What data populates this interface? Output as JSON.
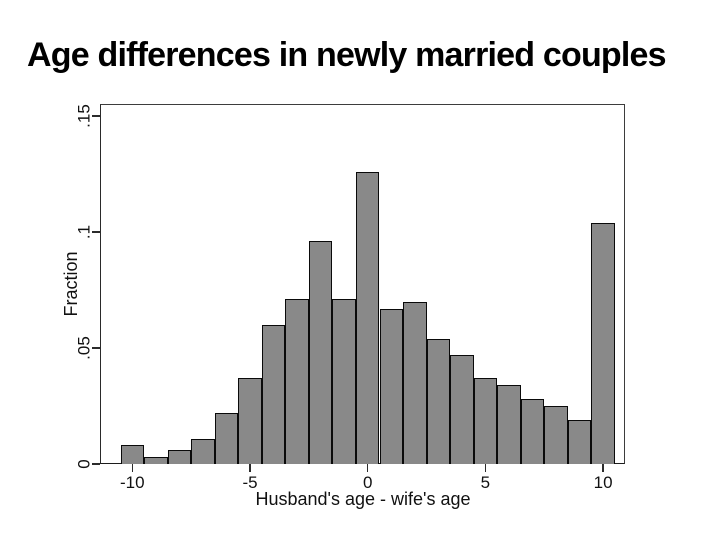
{
  "header": {
    "title": "Age differences in newly married couples"
  },
  "chart_data": {
    "type": "bar",
    "subtype": "histogram",
    "title": "Age differences in newly married couples",
    "xlabel": "Husband's age - wife's age",
    "ylabel": "Fraction",
    "categories": [
      -10,
      -9,
      -8,
      -7,
      -6,
      -5,
      -4,
      -3,
      -2,
      -1,
      0,
      1,
      2,
      3,
      4,
      5,
      6,
      7,
      8,
      9,
      10
    ],
    "values": [
      0.008,
      0.003,
      0.006,
      0.011,
      0.022,
      0.037,
      0.06,
      0.071,
      0.096,
      0.071,
      0.126,
      0.067,
      0.07,
      0.054,
      0.047,
      0.037,
      0.034,
      0.028,
      0.025,
      0.019,
      0.104
    ],
    "bin_width": 1,
    "xlim": [
      -11.37,
      10.93
    ],
    "ylim": [
      0,
      0.1551
    ],
    "x_ticks": [
      -10,
      -5,
      0,
      5,
      10
    ],
    "x_tick_labels": [
      "-10",
      "-5",
      "0",
      "5",
      "10"
    ],
    "y_ticks": [
      0,
      0.05,
      0.1,
      0.15
    ],
    "y_tick_labels": [
      "0",
      ".05",
      ".1",
      ".15"
    ],
    "y_tick_label_angle": 90,
    "grid": false,
    "legend": "none",
    "colors": {
      "background": "#ffffff",
      "bar_fill": "#898989",
      "bar_border": "#0a0a0a",
      "frame": "#3d3d3d",
      "tick": "#2b2b2b",
      "text": "#111111",
      "title_text": "#000000"
    }
  }
}
